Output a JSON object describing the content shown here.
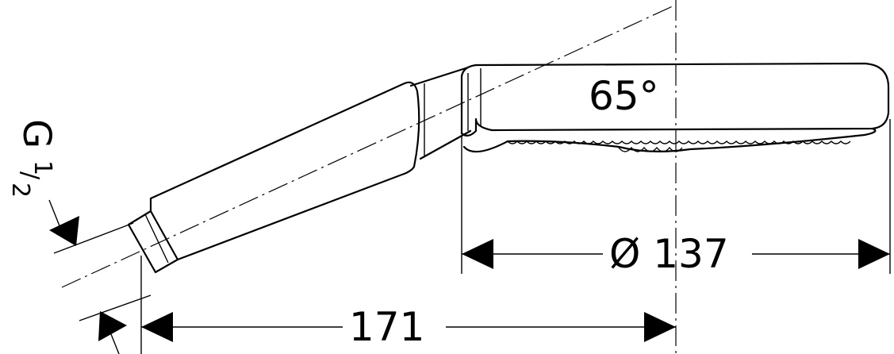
{
  "angle_label": "65°",
  "diameter_label": "Ø 137",
  "length_label": "171",
  "thread_label": {
    "prefix": "G",
    "numerator": "1",
    "slash": "/",
    "denominator": "2"
  }
}
